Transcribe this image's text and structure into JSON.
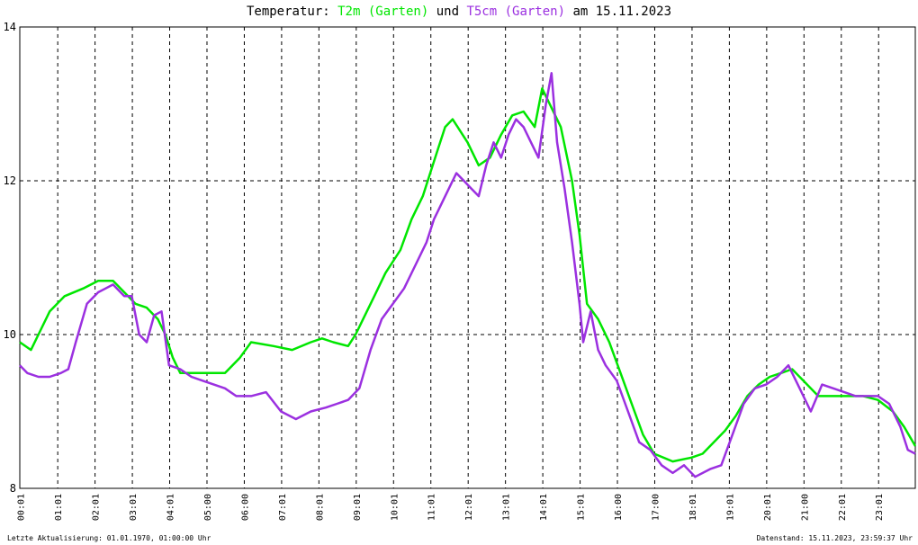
{
  "title": {
    "prefix": "Temperatur: ",
    "series1": "T2m (Garten)",
    "connector": " und ",
    "series2": "T5cm (Garten)",
    "suffix": " am 15.11.2023"
  },
  "footer": {
    "left": "Letzte Aktualisierung: 01.01.1970, 01:00:00 Uhr",
    "right": "Datenstand: 15.11.2023, 23:59:37 Uhr"
  },
  "colors": {
    "t2m": "#00e600",
    "t5cm": "#9b30e0",
    "grid": "#000000",
    "background": "#ffffff"
  },
  "chart_data": {
    "type": "line",
    "title": "Temperatur: T2m (Garten) und T5cm (Garten) am 15.11.2023",
    "xlabel": "",
    "ylabel": "",
    "xlim": [
      0,
      24
    ],
    "ylim": [
      8,
      14
    ],
    "y_ticks": [
      8,
      10,
      12,
      14
    ],
    "x_ticks": [
      0.0167,
      1.0167,
      2.0167,
      3.0167,
      4.0167,
      5.0167,
      6.0167,
      7.0167,
      8.0167,
      9.0167,
      10.0167,
      11.0167,
      12.0167,
      13.0167,
      14.0167,
      15.0167,
      16.0167,
      17.0167,
      18.0167,
      19.0167,
      20.0167,
      21.0167,
      22.0167,
      23.0167
    ],
    "x_tick_labels": [
      "00:01",
      "01:01",
      "02:01",
      "03:01",
      "04:01",
      "05:00",
      "06:00",
      "07:01",
      "08:01",
      "09:01",
      "10:01",
      "11:01",
      "12:01",
      "13:01",
      "14:01",
      "15:01",
      "16:00",
      "17:00",
      "18:01",
      "19:01",
      "20:01",
      "21:00",
      "22:01",
      "23:01"
    ],
    "grid": "dashed",
    "series": [
      {
        "name": "T2m (Garten)",
        "color": "#00e600",
        "x": [
          0,
          0.3,
          0.5,
          0.8,
          1.2,
          1.7,
          2.1,
          2.5,
          2.8,
          3.1,
          3.4,
          3.7,
          3.9,
          4.1,
          4.3,
          4.6,
          5.0,
          5.5,
          5.9,
          6.2,
          6.8,
          7.3,
          7.8,
          8.1,
          8.4,
          8.8,
          9.0,
          9.2,
          9.5,
          9.8,
          10.2,
          10.5,
          10.8,
          11.0,
          11.2,
          11.4,
          11.6,
          11.8,
          12.0,
          12.3,
          12.6,
          12.9,
          13.2,
          13.5,
          13.8,
          14.0,
          14.2,
          14.5,
          14.8,
          15.0,
          15.2,
          15.5,
          15.8,
          16.1,
          16.4,
          16.7,
          17.0,
          17.5,
          18.0,
          18.3,
          18.6,
          18.9,
          19.2,
          19.5,
          19.8,
          20.1,
          20.4,
          20.7,
          21.0,
          21.4,
          21.8,
          22.2,
          22.6,
          23.0,
          23.4,
          23.7,
          24.0
        ],
        "values": [
          9.9,
          9.8,
          10.0,
          10.3,
          10.5,
          10.6,
          10.7,
          10.7,
          10.55,
          10.4,
          10.35,
          10.2,
          10.0,
          9.7,
          9.5,
          9.5,
          9.5,
          9.5,
          9.7,
          9.9,
          9.85,
          9.8,
          9.9,
          9.95,
          9.9,
          9.85,
          10.0,
          10.2,
          10.5,
          10.8,
          11.1,
          11.5,
          11.8,
          12.1,
          12.4,
          12.7,
          12.8,
          12.65,
          12.5,
          12.2,
          12.3,
          12.6,
          12.85,
          12.9,
          12.7,
          13.2,
          13.0,
          12.7,
          12.0,
          11.3,
          10.4,
          10.2,
          9.9,
          9.5,
          9.1,
          8.7,
          8.45,
          8.35,
          8.4,
          8.45,
          8.6,
          8.75,
          8.95,
          9.2,
          9.35,
          9.45,
          9.5,
          9.55,
          9.4,
          9.2,
          9.2,
          9.2,
          9.2,
          9.15,
          9.0,
          8.8,
          8.55
        ]
      },
      {
        "name": "T5cm (Garten)",
        "color": "#9b30e0",
        "x": [
          0,
          0.2,
          0.5,
          0.8,
          1.1,
          1.3,
          1.5,
          1.8,
          2.1,
          2.3,
          2.5,
          2.8,
          3.0,
          3.2,
          3.4,
          3.6,
          3.8,
          4.0,
          4.3,
          4.6,
          4.9,
          5.2,
          5.5,
          5.8,
          6.2,
          6.6,
          7.0,
          7.4,
          7.8,
          8.2,
          8.5,
          8.8,
          9.1,
          9.4,
          9.7,
          10.0,
          10.3,
          10.6,
          10.9,
          11.1,
          11.3,
          11.5,
          11.7,
          11.9,
          12.1,
          12.3,
          12.5,
          12.7,
          12.9,
          13.1,
          13.3,
          13.5,
          13.7,
          13.9,
          14.1,
          14.25,
          14.4,
          14.6,
          14.8,
          15.0,
          15.1,
          15.3,
          15.5,
          15.7,
          16.0,
          16.3,
          16.6,
          16.9,
          17.2,
          17.5,
          17.8,
          18.1,
          18.5,
          18.8,
          19.1,
          19.4,
          19.7,
          20.0,
          20.3,
          20.6,
          20.9,
          21.2,
          21.5,
          21.8,
          22.1,
          22.4,
          22.7,
          23.0,
          23.3,
          23.6,
          23.8,
          24.0
        ],
        "values": [
          9.6,
          9.5,
          9.45,
          9.45,
          9.5,
          9.55,
          9.9,
          10.4,
          10.55,
          10.6,
          10.65,
          10.5,
          10.5,
          10.0,
          9.9,
          10.25,
          10.3,
          9.6,
          9.55,
          9.45,
          9.4,
          9.35,
          9.3,
          9.2,
          9.2,
          9.25,
          9.0,
          8.9,
          9.0,
          9.05,
          9.1,
          9.15,
          9.3,
          9.8,
          10.2,
          10.4,
          10.6,
          10.9,
          11.2,
          11.5,
          11.7,
          11.9,
          12.1,
          12.0,
          11.9,
          11.8,
          12.2,
          12.5,
          12.3,
          12.6,
          12.8,
          12.7,
          12.5,
          12.3,
          13.0,
          13.4,
          12.5,
          11.9,
          11.2,
          10.4,
          9.9,
          10.3,
          9.8,
          9.6,
          9.4,
          9.0,
          8.6,
          8.5,
          8.3,
          8.2,
          8.3,
          8.15,
          8.25,
          8.3,
          8.7,
          9.1,
          9.3,
          9.35,
          9.45,
          9.6,
          9.3,
          9.0,
          9.35,
          9.3,
          9.25,
          9.2,
          9.2,
          9.2,
          9.1,
          8.8,
          8.5,
          8.45
        ]
      }
    ]
  }
}
